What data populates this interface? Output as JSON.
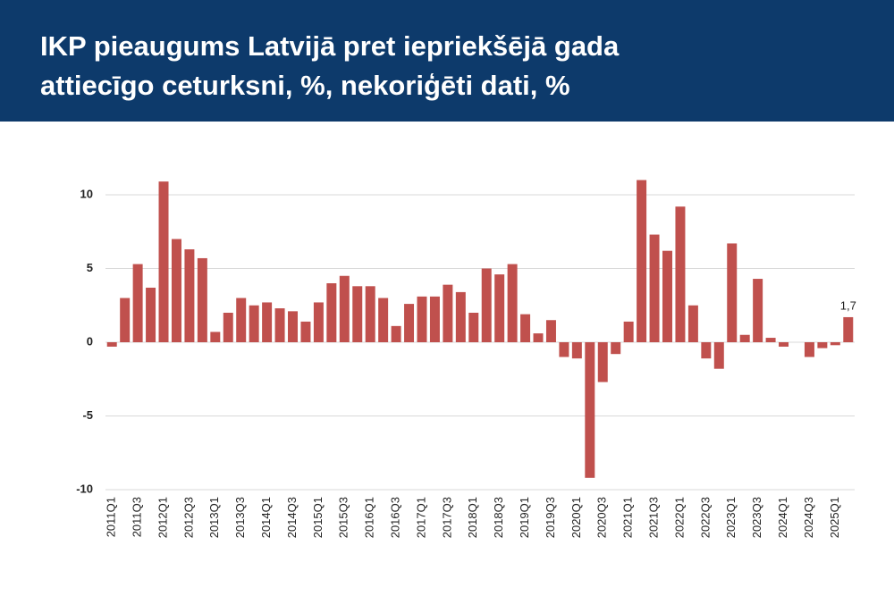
{
  "chart_data": {
    "type": "bar",
    "title": "IKP pieaugums Latvijā pret iepriekšējā gada\nattiecīgo ceturksni, %, nekoriģēti dati, %",
    "categories": [
      "2011Q1",
      null,
      "2011Q3",
      null,
      "2012Q1",
      null,
      "2012Q3",
      null,
      "2013Q1",
      null,
      "2013Q3",
      null,
      "2014Q1",
      null,
      "2014Q3",
      null,
      "2015Q1",
      null,
      "2015Q3",
      null,
      "2016Q1",
      null,
      "2016Q3",
      null,
      "2017Q1",
      null,
      "2017Q3",
      null,
      "2018Q1",
      null,
      "2018Q3",
      null,
      "2019Q1",
      null,
      "2019Q3",
      null,
      "2020Q1",
      null,
      "2020Q3",
      null,
      "2021Q1",
      null,
      "2021Q3",
      null,
      "2022Q1",
      null,
      "2022Q3",
      null,
      "2023Q1",
      null,
      "2023Q3",
      null,
      "2024Q1",
      null,
      "2024Q3",
      null,
      "2025Q1",
      null
    ],
    "values": [
      -0.3,
      3.0,
      5.3,
      3.7,
      10.9,
      7.0,
      6.3,
      5.7,
      0.7,
      2.0,
      3.0,
      2.5,
      2.7,
      2.3,
      2.1,
      1.4,
      2.7,
      4.0,
      4.5,
      3.8,
      3.8,
      3.0,
      1.1,
      2.6,
      3.1,
      3.1,
      3.9,
      3.4,
      2.0,
      5.0,
      4.6,
      5.3,
      1.9,
      0.6,
      1.5,
      -1.0,
      -1.1,
      -9.2,
      -2.7,
      -0.8,
      1.4,
      11.0,
      7.3,
      6.2,
      9.2,
      2.5,
      -1.1,
      -1.8,
      6.7,
      0.5,
      4.3,
      0.3,
      -0.3,
      0.0,
      -1.0,
      -0.4,
      -0.2,
      1.7
    ],
    "value_labels": [
      null,
      null,
      null,
      null,
      null,
      null,
      null,
      null,
      null,
      null,
      null,
      null,
      null,
      null,
      null,
      null,
      null,
      null,
      null,
      null,
      null,
      null,
      null,
      null,
      null,
      null,
      null,
      null,
      null,
      null,
      null,
      null,
      null,
      null,
      null,
      null,
      null,
      null,
      null,
      null,
      null,
      null,
      null,
      null,
      null,
      null,
      null,
      null,
      null,
      null,
      null,
      null,
      null,
      null,
      null,
      null,
      null,
      "1,7"
    ],
    "color": "#c0504d",
    "ylim": [
      -10,
      12
    ],
    "yticks": [
      -10,
      -5,
      0,
      5,
      10
    ],
    "grid": true
  }
}
